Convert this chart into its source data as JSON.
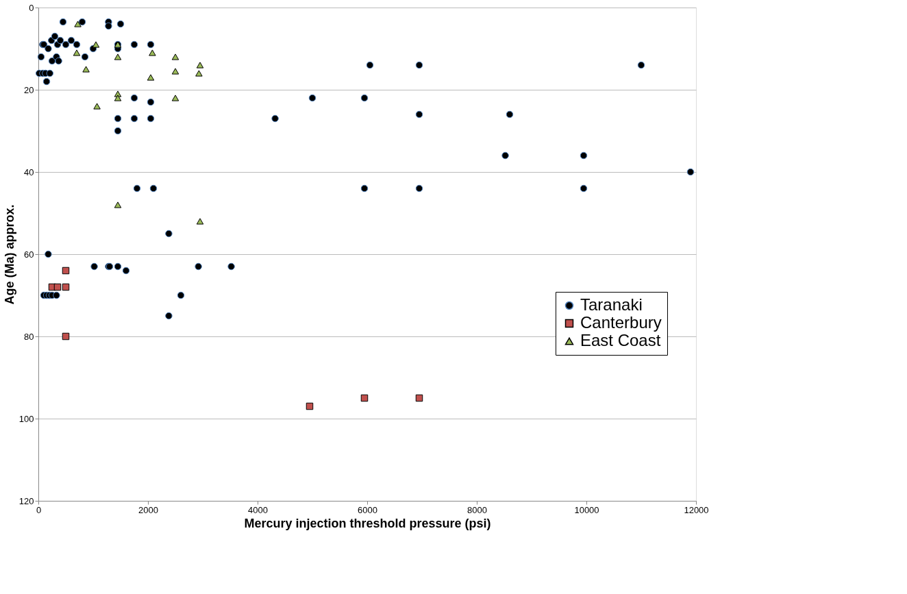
{
  "chart_data": {
    "type": "scatter",
    "xlabel": "Mercury injection threshold pressure (psi)",
    "ylabel": "Age (Ma) approx.",
    "xlim": [
      0,
      12000
    ],
    "xticks": [
      0,
      2000,
      4000,
      6000,
      8000,
      10000,
      12000
    ],
    "ylim": [
      120,
      0
    ],
    "yticks": [
      0,
      20,
      40,
      60,
      80,
      100,
      120
    ],
    "grid": "y",
    "legend": "right",
    "series": [
      {
        "name": "Taranaki",
        "color": "#000000",
        "marker": "circle",
        "x": [
          15,
          50,
          80,
          100,
          80,
          130,
          150,
          180,
          210,
          240,
          250,
          300,
          330,
          350,
          370,
          400,
          450,
          500,
          600,
          700,
          800,
          850,
          1000,
          1280,
          1280,
          1450,
          1450,
          1500,
          1750,
          2050,
          1750,
          1450,
          1750,
          2050,
          1450,
          2050,
          4320,
          5000,
          5950,
          6050,
          6950,
          6950,
          11000,
          8600,
          8520,
          9950,
          11900,
          5950,
          6950,
          9950,
          1800,
          2100,
          2380,
          180,
          1020,
          1280,
          1300,
          1450,
          1600,
          2920,
          3520,
          2600,
          2380,
          100,
          150,
          200,
          250,
          330
        ],
        "values": [
          16,
          12,
          9,
          9,
          16,
          16,
          18,
          10,
          16,
          8,
          13,
          7,
          12,
          9,
          13,
          8,
          3.5,
          9,
          8,
          9,
          3.5,
          12,
          10,
          3.5,
          4.5,
          10,
          9,
          4,
          9,
          9,
          22,
          27,
          27,
          27,
          30,
          23,
          27,
          22,
          22,
          14,
          14,
          26,
          14,
          26,
          36,
          36,
          40,
          44,
          44,
          44,
          44,
          44,
          55,
          60,
          63,
          63,
          63,
          63,
          64,
          63,
          63,
          70,
          75,
          70,
          70,
          70,
          70,
          70
        ]
      },
      {
        "name": "Canterbury",
        "color": "#c0504d",
        "marker": "square",
        "x": [
          500,
          250,
          350,
          500,
          500,
          4950,
          5950,
          6950
        ],
        "values": [
          64,
          68,
          68,
          68,
          80,
          97,
          95,
          95
        ]
      },
      {
        "name": "East Coast",
        "color": "#9bbb59",
        "marker": "triangle",
        "x": [
          720,
          1050,
          1450,
          700,
          870,
          1450,
          2080,
          2500,
          2950,
          2930,
          2500,
          2050,
          1450,
          1450,
          1070,
          2500,
          1450,
          2950
        ],
        "values": [
          4,
          9,
          9,
          11,
          15,
          12,
          11,
          12,
          14,
          16,
          15.5,
          17,
          21,
          22,
          24,
          22,
          48,
          52
        ]
      }
    ]
  }
}
